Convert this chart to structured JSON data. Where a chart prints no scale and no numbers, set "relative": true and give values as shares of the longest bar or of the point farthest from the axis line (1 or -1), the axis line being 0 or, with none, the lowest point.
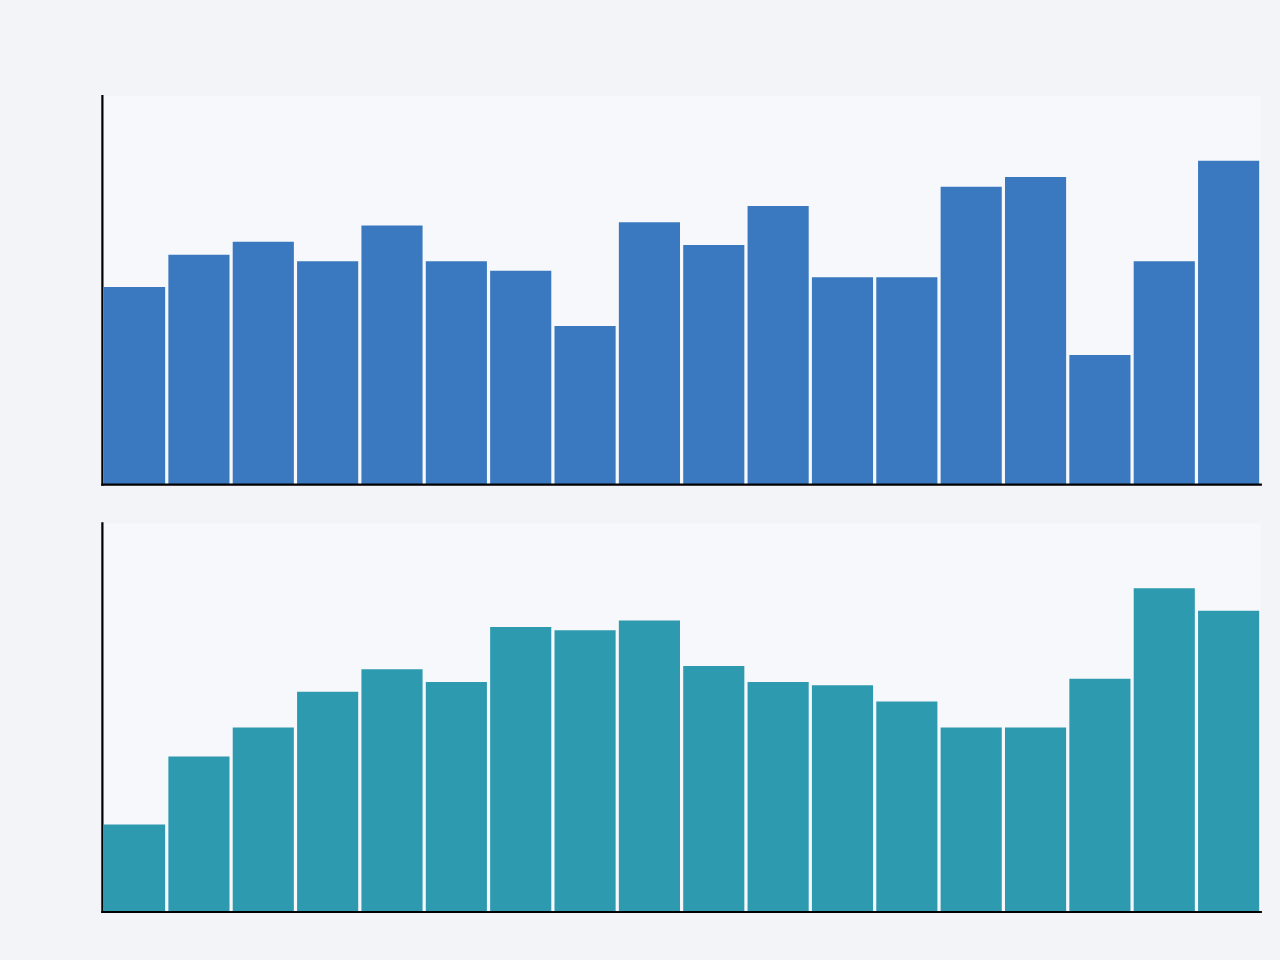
{
  "chart_data": [
    {
      "type": "bar",
      "relative": true,
      "categories": [
        null,
        null,
        null,
        null,
        null,
        null,
        null,
        null,
        null,
        null,
        null,
        null,
        null,
        null,
        null,
        null,
        null,
        null
      ],
      "color": "#3a78c0",
      "values": [
        0.61,
        0.71,
        0.75,
        0.69,
        0.8,
        0.69,
        0.66,
        0.49,
        0.81,
        0.74,
        0.86,
        0.64,
        0.64,
        0.92,
        0.95,
        0.4,
        0.69,
        1.0
      ]
    },
    {
      "type": "bar",
      "relative": true,
      "categories": [
        null,
        null,
        null,
        null,
        null,
        null,
        null,
        null,
        null,
        null,
        null,
        null,
        null,
        null,
        null,
        null,
        null,
        null
      ],
      "color": "#2e9ab0",
      "values": [
        0.27,
        0.48,
        0.57,
        0.68,
        0.75,
        0.71,
        0.88,
        0.87,
        0.9,
        0.76,
        0.71,
        0.7,
        0.65,
        0.57,
        0.57,
        0.72,
        1.0,
        0.93
      ]
    }
  ]
}
